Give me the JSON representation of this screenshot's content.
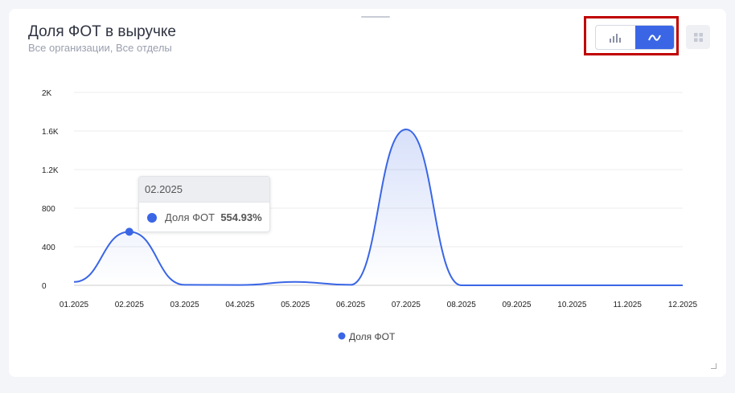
{
  "header": {
    "title": "Доля ФОТ в выручке",
    "subtitle": "Все организации, Все отделы"
  },
  "toolbar": {
    "bar_icon": "bar-chart-icon",
    "line_icon": "line-chart-icon",
    "active": "line",
    "grid_icon": "grid-icon"
  },
  "tooltip": {
    "title": "02.2025",
    "series": "Доля ФОТ",
    "value": "554.93%"
  },
  "colors": {
    "accent": "#3a66e6"
  },
  "chart_data": {
    "type": "area",
    "categories": [
      "01.2025",
      "02.2025",
      "03.2025",
      "04.2025",
      "05.2025",
      "06.2025",
      "07.2025",
      "08.2025",
      "09.2025",
      "10.2025",
      "11.2025",
      "12.2025"
    ],
    "series": [
      {
        "name": "Доля ФОТ",
        "values": [
          35,
          555,
          5,
          3,
          35,
          5,
          1617,
          0,
          0,
          0,
          0,
          0
        ]
      }
    ],
    "yticks": [
      {
        "v": 0,
        "label": "0"
      },
      {
        "v": 400,
        "label": "400"
      },
      {
        "v": 800,
        "label": "800"
      },
      {
        "v": 1200,
        "label": "1.2K"
      },
      {
        "v": 1600,
        "label": "1.6K"
      },
      {
        "v": 2000,
        "label": "2K"
      }
    ],
    "ylim": [
      0,
      2000
    ],
    "grid": true,
    "legend": "bottom",
    "legend_label": "Доля ФОТ"
  }
}
